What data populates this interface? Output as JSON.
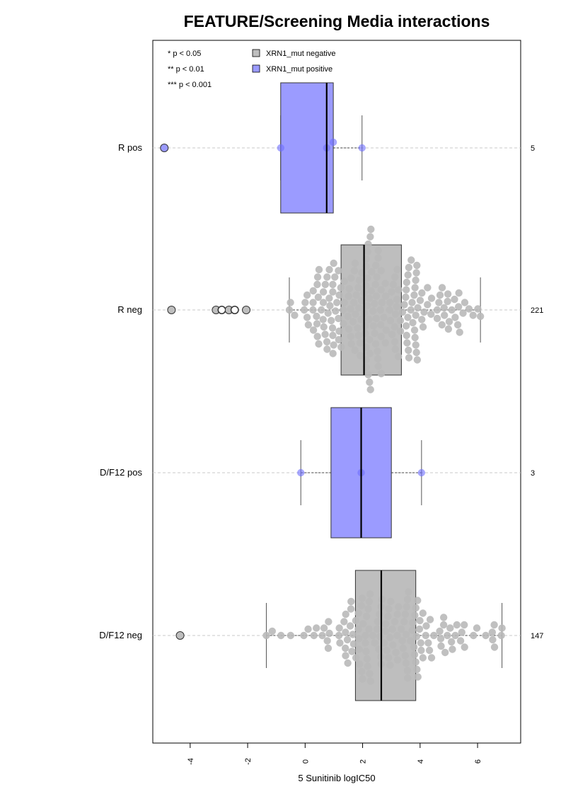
{
  "chart_data": {
    "type": "box",
    "orientation": "horizontal",
    "title": "FEATURE/Screening Media interactions",
    "xlabel": "5 Sunitinib logIC50",
    "xlim": [
      -5.3,
      7.5
    ],
    "xticks": [
      "-4",
      "-2",
      "0",
      "2",
      "4",
      "6"
    ],
    "grid": "dashed horizontal line per group",
    "significance_legend": [
      "* p < 0.05",
      "** p < 0.01",
      "*** p < 0.001"
    ],
    "legend": {
      "placement": "top-left",
      "items": [
        {
          "label": "XRN1_mut negative",
          "color": "#bebebe"
        },
        {
          "label": "XRN1_mut positive",
          "color": "#9b9bff"
        }
      ]
    },
    "groups": [
      {
        "label": "R pos",
        "n": "5",
        "status": "positive",
        "color": "#9b9bff",
        "box": {
          "whisker_low": -0.85,
          "q1": -0.85,
          "median": 0.75,
          "q3": 0.98,
          "whisker_high": 1.98
        },
        "outliers": [
          -4.9
        ],
        "points": [
          -0.85,
          0.75,
          0.98,
          1.98
        ]
      },
      {
        "label": "R neg",
        "n": "221",
        "status": "negative",
        "color": "#bebebe",
        "box": {
          "whisker_low": -0.55,
          "q1": 1.25,
          "median": 2.05,
          "q3": 3.35,
          "whisker_high": 6.1
        },
        "outliers": [
          -4.65,
          -3.1,
          -2.9,
          -2.65,
          -2.45,
          -2.05
        ],
        "points": []
      },
      {
        "label": "D/F12 pos",
        "n": "3",
        "status": "positive",
        "color": "#9b9bff",
        "box": {
          "whisker_low": -0.15,
          "q1": 0.9,
          "median": 1.95,
          "q3": 3.0,
          "whisker_high": 4.05
        },
        "outliers": [],
        "points": [
          -0.15,
          1.95,
          4.05
        ]
      },
      {
        "label": "D/F12 neg",
        "n": "147",
        "status": "negative",
        "color": "#bebebe",
        "box": {
          "whisker_low": -1.35,
          "q1": 1.75,
          "median": 2.65,
          "q3": 3.85,
          "whisker_high": 6.85
        },
        "outliers": [
          -4.35
        ],
        "points": []
      }
    ]
  }
}
